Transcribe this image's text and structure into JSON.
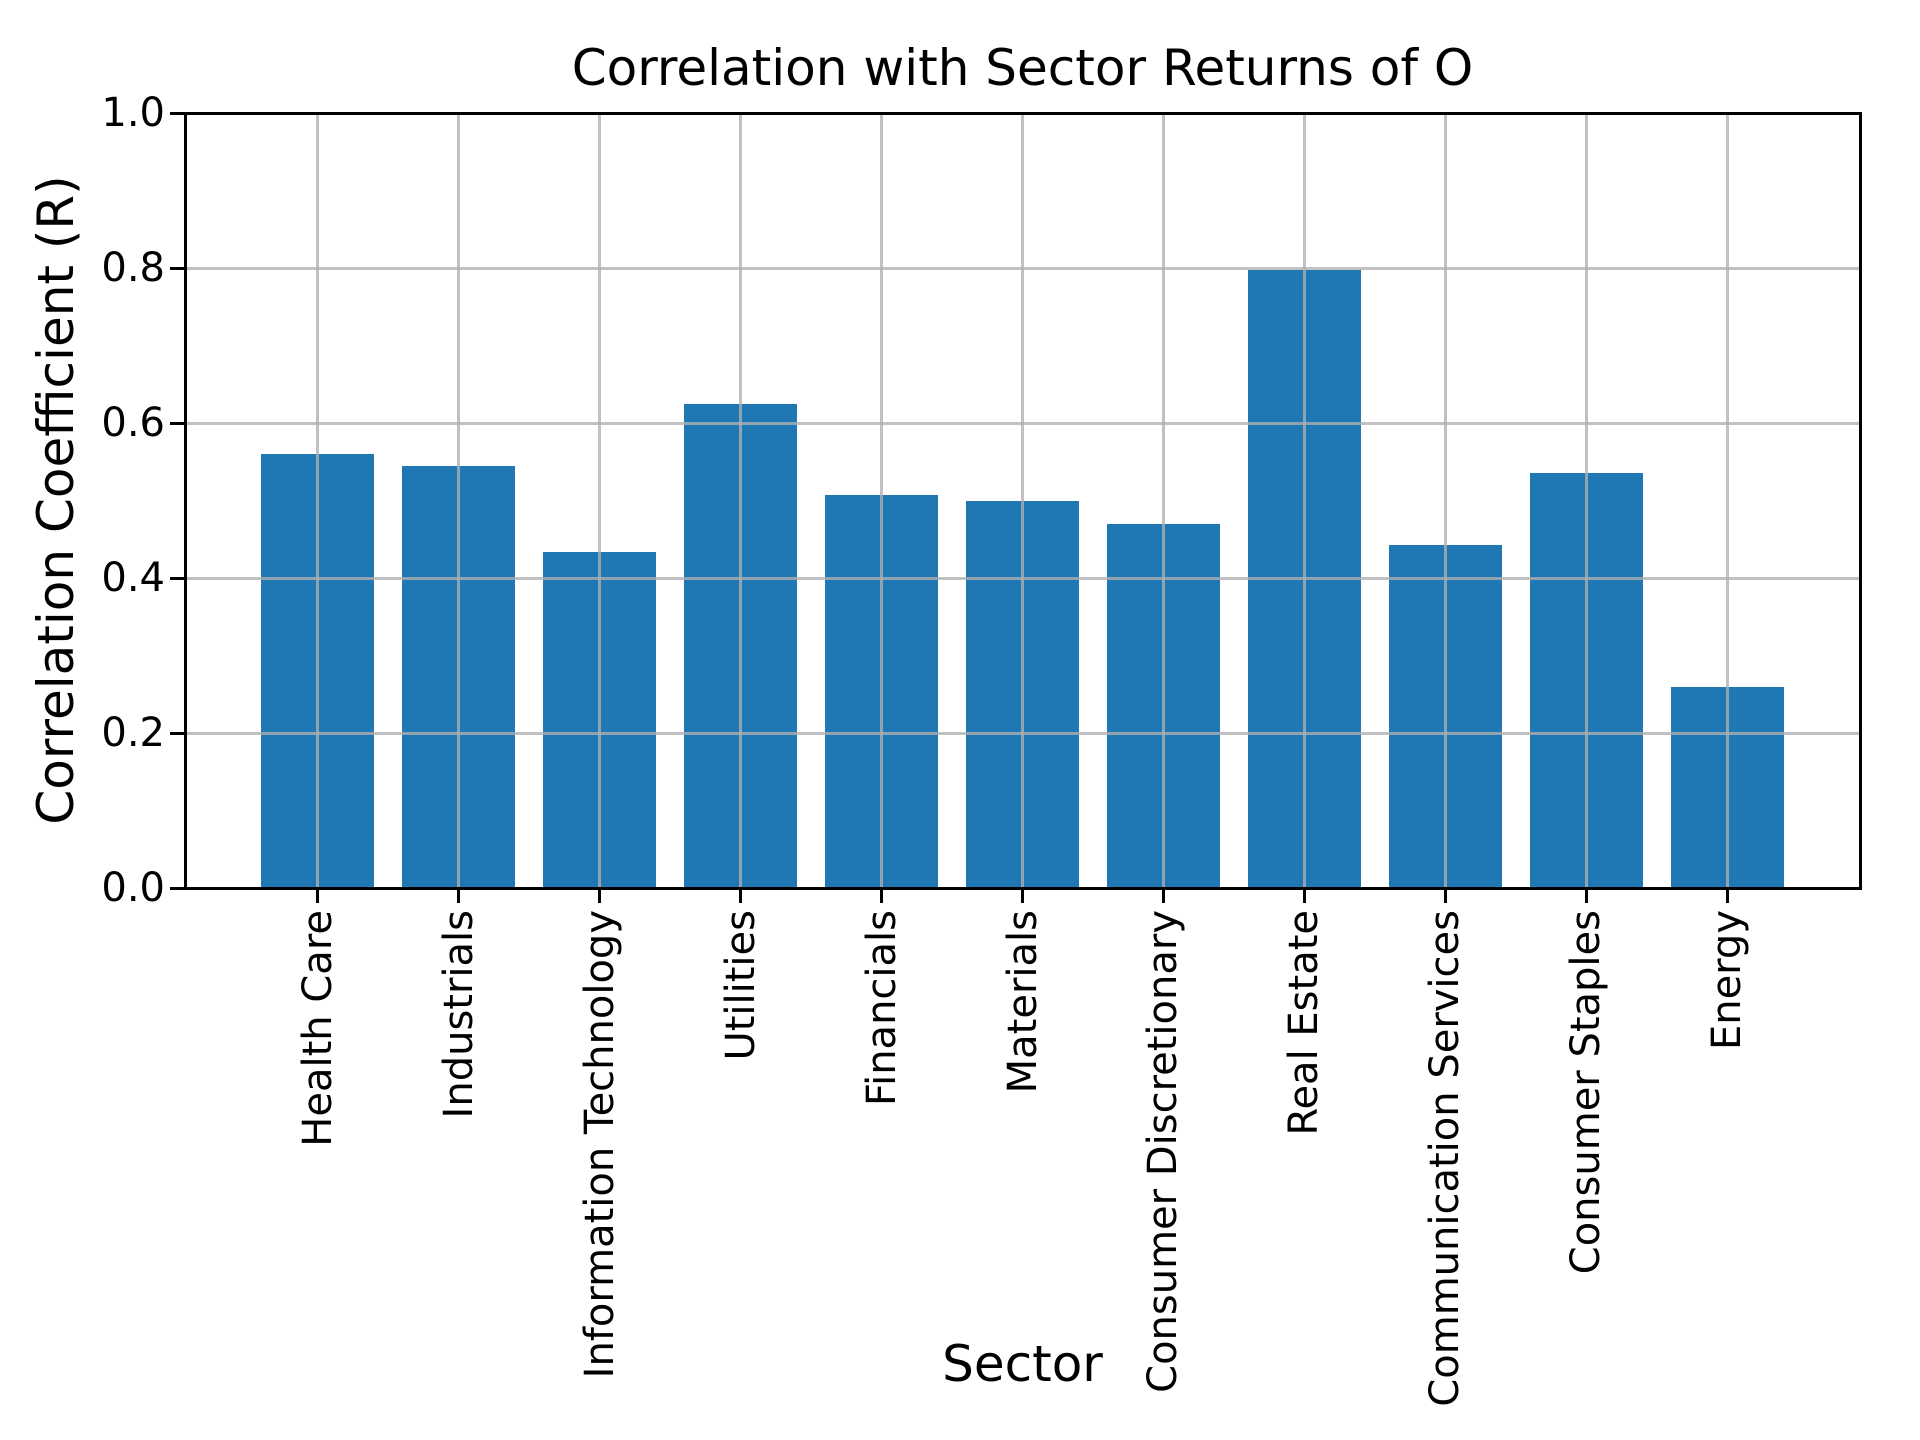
{
  "figure": {
    "title": "Correlation with Sector Returns of O",
    "xlabel": "Sector",
    "ylabel": "Correlation Coefficient (R)"
  },
  "chart_data": {
    "type": "bar",
    "title": "Correlation with Sector Returns of O",
    "xlabel": "Sector",
    "ylabel": "Correlation Coefficient (R)",
    "categories": [
      "Health Care",
      "Industrials",
      "Information Technology",
      "Utilities",
      "Financials",
      "Materials",
      "Consumer Discretionary",
      "Real Estate",
      "Communication Services",
      "Consumer Staples",
      "Energy"
    ],
    "values": [
      0.56,
      0.544,
      0.434,
      0.625,
      0.507,
      0.5,
      0.47,
      0.797,
      0.442,
      0.536,
      0.26
    ],
    "ylim": [
      0.0,
      1.0
    ],
    "yticks": [
      0.0,
      0.2,
      0.4,
      0.6,
      0.8,
      1.0
    ],
    "ytick_labels": [
      "0.0",
      "0.2",
      "0.4",
      "0.6",
      "0.8",
      "1.0"
    ],
    "x_tick_rotation_deg": 90,
    "grid": true,
    "legend": false,
    "colors": {
      "bar": "#1f77b4",
      "grid": "#b0b0b0",
      "spine": "#000000",
      "text": "#000000",
      "background": "#ffffff"
    }
  }
}
